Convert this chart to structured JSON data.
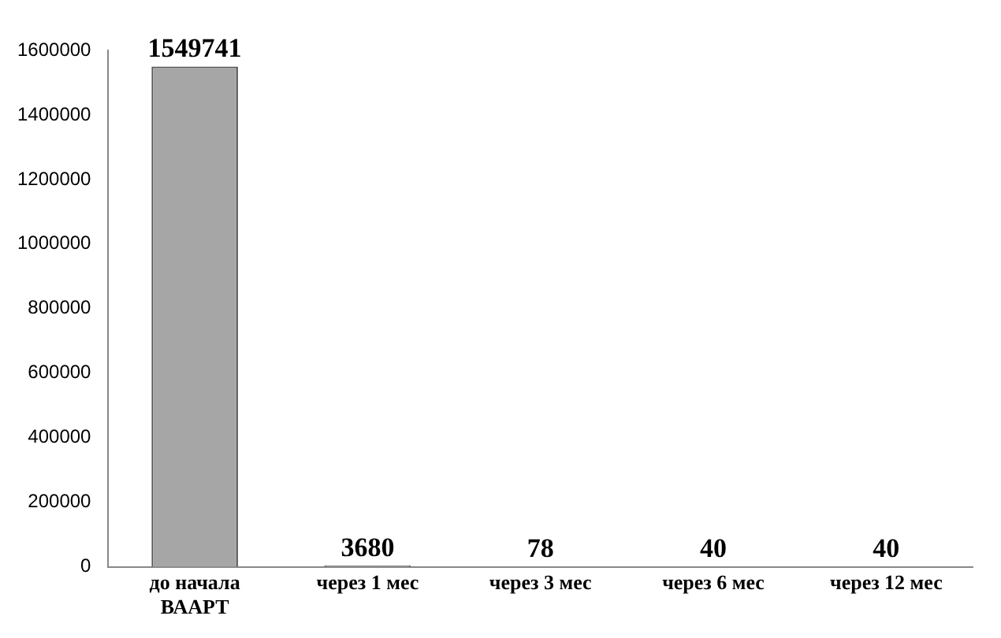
{
  "chart_data": {
    "type": "bar",
    "categories": [
      "до начала ВААРТ",
      "через 1 мес",
      "через 3 мес",
      "через 6 мес",
      "через 12 мес"
    ],
    "values": [
      1549741,
      3680,
      78,
      40,
      40
    ],
    "color": "#a6a6a6",
    "ylim": [
      0,
      1600000
    ],
    "yticks": [
      0,
      200000,
      400000,
      600000,
      800000,
      1000000,
      1200000,
      1400000,
      1600000
    ],
    "grid": false,
    "legend": false,
    "data_labels": true
  }
}
